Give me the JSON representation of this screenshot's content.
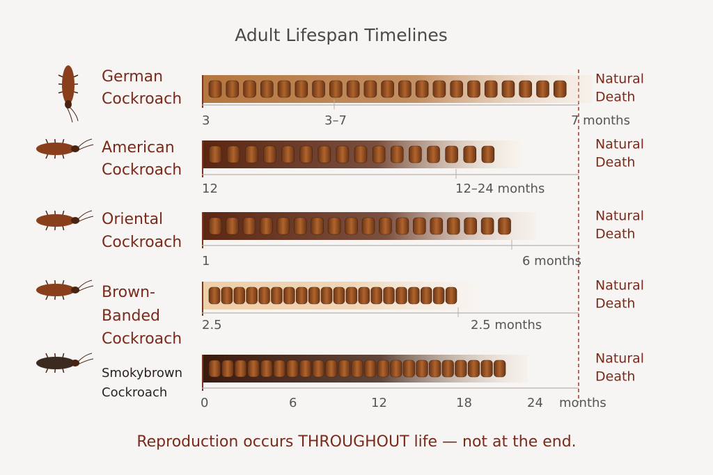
{
  "title": "Adult Lifespan Timelines",
  "rows": [
    {
      "name": [
        "German",
        "Cockroach"
      ],
      "ticks": [
        "3",
        "3–7",
        "7 months"
      ],
      "end_label": [
        "Natural",
        "Death"
      ]
    },
    {
      "name": [
        "American",
        "Cockroach"
      ],
      "ticks": [
        "12",
        "12–24 months"
      ],
      "end_label": [
        "Natural",
        "Death"
      ]
    },
    {
      "name": [
        "Oriental",
        "Cockroach"
      ],
      "ticks": [
        "1",
        "6 months"
      ],
      "end_label": [
        "Natural",
        "Death"
      ]
    },
    {
      "name": [
        "Brown-",
        "Banded",
        "Cockroach"
      ],
      "ticks": [
        "2.5",
        "2.5 months"
      ],
      "end_label": [
        "Natural",
        "Death"
      ]
    },
    {
      "name": [
        "Smokybrown",
        "Cockroach"
      ],
      "ticks": [
        "0",
        "6",
        "12",
        "18",
        "24",
        "months"
      ],
      "end_label": [
        "Natural",
        "Death"
      ]
    }
  ],
  "footer": "Reproduction occurs THROUGHOUT life — not at the end."
}
